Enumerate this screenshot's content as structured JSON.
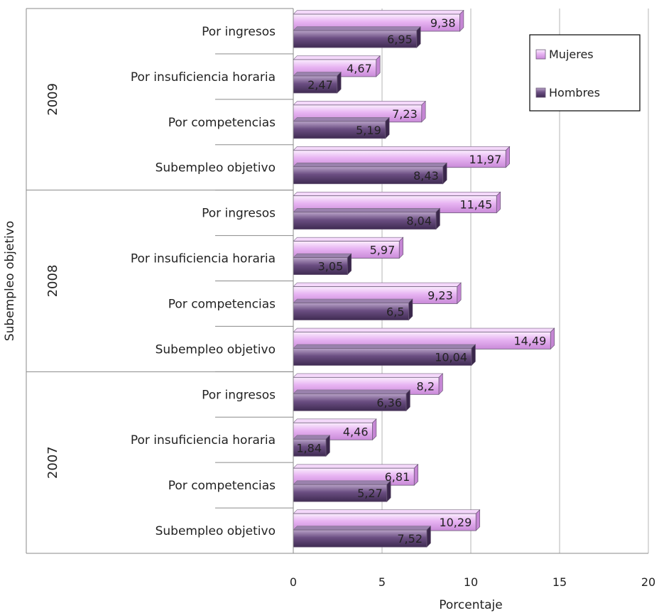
{
  "chart_data": {
    "type": "bar",
    "orientation": "horizontal",
    "title": "",
    "xlabel": "Porcentaje",
    "ylabel": "Subempleo objetivo",
    "xlim": [
      0,
      20
    ],
    "xticks": [
      "0",
      "5",
      "10",
      "15",
      "20"
    ],
    "grid": true,
    "legend_position": "top-right",
    "categories": [
      {
        "group": "2009",
        "label": "Por ingresos"
      },
      {
        "group": "2009",
        "label": "Por insuficiencia horaria"
      },
      {
        "group": "2009",
        "label": "Por competencias"
      },
      {
        "group": "2009",
        "label": "Subempleo objetivo"
      },
      {
        "group": "2008",
        "label": "Por ingresos"
      },
      {
        "group": "2008",
        "label": "Por insuficiencia horaria"
      },
      {
        "group": "2008",
        "label": "Por competencias"
      },
      {
        "group": "2008",
        "label": "Subempleo objetivo"
      },
      {
        "group": "2007",
        "label": "Por ingresos"
      },
      {
        "group": "2007",
        "label": "Por insuficiencia horaria"
      },
      {
        "group": "2007",
        "label": "Por competencias"
      },
      {
        "group": "2007",
        "label": "Subempleo objetivo"
      }
    ],
    "groups": [
      "2009",
      "2008",
      "2007"
    ],
    "series": [
      {
        "name": "Mujeres",
        "color": "#e9b7f3",
        "values": [
          9.38,
          4.67,
          7.23,
          11.97,
          11.45,
          5.97,
          9.23,
          14.49,
          8.2,
          4.46,
          6.81,
          10.29
        ],
        "labels": [
          "9,38",
          "4,67",
          "7,23",
          "11,97",
          "11,45",
          "5,97",
          "9,23",
          "14,49",
          "8,2",
          "4,46",
          "6,81",
          "10,29"
        ]
      },
      {
        "name": "Hombres",
        "color": "#6a4d80",
        "values": [
          6.95,
          2.47,
          5.19,
          8.43,
          8.04,
          3.05,
          6.5,
          10.04,
          6.36,
          1.84,
          5.27,
          7.52
        ],
        "labels": [
          "6,95",
          "2,47",
          "5,19",
          "8,43",
          "8,04",
          "3,05",
          "6,5",
          "10,04",
          "6,36",
          "1,84",
          "5,27",
          "7,52"
        ]
      }
    ]
  }
}
